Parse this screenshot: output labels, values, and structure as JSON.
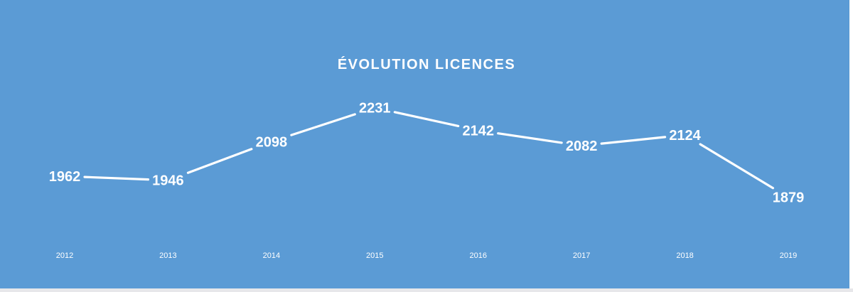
{
  "chart_data": {
    "type": "line",
    "title": "ÉVOLUTION LICENCES",
    "categories": [
      "2012",
      "2013",
      "2014",
      "2015",
      "2016",
      "2017",
      "2018",
      "2019"
    ],
    "values": [
      1962,
      1946,
      2098,
      2231,
      2142,
      2082,
      2124,
      1879
    ],
    "data_labels": [
      "1962",
      "1946",
      "2098",
      "2231",
      "2142",
      "2082",
      "2124",
      "1879"
    ],
    "xlabel": "",
    "ylabel": "",
    "grid": false,
    "legend": "none",
    "colors": {
      "background": "#5b9bd5",
      "line": "#ffffff",
      "text": "#ffffff"
    }
  }
}
